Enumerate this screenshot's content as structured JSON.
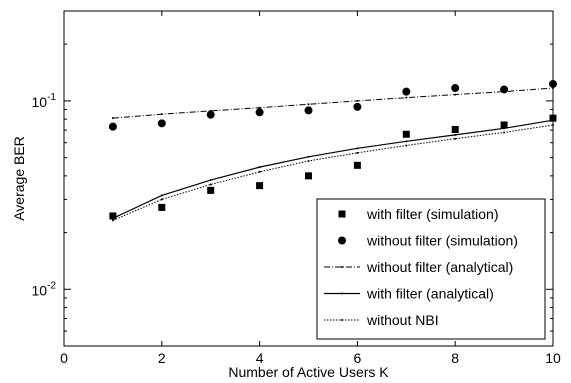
{
  "chart_data": {
    "type": "line",
    "xlabel": "Number of Active Users K",
    "ylabel": "Average BER",
    "xlim": [
      0,
      10
    ],
    "ylim": [
      0.005,
      0.3
    ],
    "yscale": "log",
    "grid": false,
    "legend_position": "bottom-right",
    "x_ticks": [
      {
        "value": 0,
        "label": "0"
      },
      {
        "value": 2,
        "label": "2"
      },
      {
        "value": 4,
        "label": "4"
      },
      {
        "value": 6,
        "label": "6"
      },
      {
        "value": 8,
        "label": "8"
      },
      {
        "value": 10,
        "label": "10"
      }
    ],
    "y_ticks": [
      {
        "value": 0.01,
        "base": "10",
        "exp": "-2"
      },
      {
        "value": 0.1,
        "base": "10",
        "exp": "-1"
      }
    ],
    "series": [
      {
        "name": "with filter (simulation)",
        "style": "markers",
        "marker": "square",
        "x": [
          1,
          2,
          3,
          4,
          5,
          6,
          7,
          8,
          9,
          10
        ],
        "y": [
          0.0245,
          0.0272,
          0.0335,
          0.0355,
          0.04,
          0.0455,
          0.0665,
          0.0705,
          0.0745,
          0.081
        ]
      },
      {
        "name": "without filter (simulation)",
        "style": "markers",
        "marker": "circle",
        "x": [
          1,
          2,
          3,
          4,
          5,
          6,
          7,
          8,
          9,
          10
        ],
        "y": [
          0.073,
          0.076,
          0.0845,
          0.087,
          0.089,
          0.093,
          0.112,
          0.117,
          0.115,
          0.123
        ]
      },
      {
        "name": "without filter (analytical)",
        "style": "dashdot",
        "x": [
          1,
          2,
          3,
          4,
          5,
          6,
          7,
          8,
          9,
          10
        ],
        "y": [
          0.081,
          0.085,
          0.0885,
          0.092,
          0.096,
          0.1,
          0.104,
          0.108,
          0.112,
          0.117
        ]
      },
      {
        "name": "with filter (analytical)",
        "style": "solid",
        "x": [
          1,
          2,
          3,
          4,
          5,
          6,
          7,
          8,
          9,
          10
        ],
        "y": [
          0.0238,
          0.0315,
          0.038,
          0.0445,
          0.0505,
          0.056,
          0.061,
          0.066,
          0.0715,
          0.079
        ]
      },
      {
        "name": "without NBI",
        "style": "dotted",
        "x": [
          1,
          2,
          3,
          4,
          5,
          6,
          7,
          8,
          9,
          10
        ],
        "y": [
          0.0232,
          0.03,
          0.036,
          0.042,
          0.048,
          0.053,
          0.058,
          0.063,
          0.068,
          0.0745
        ]
      }
    ]
  }
}
